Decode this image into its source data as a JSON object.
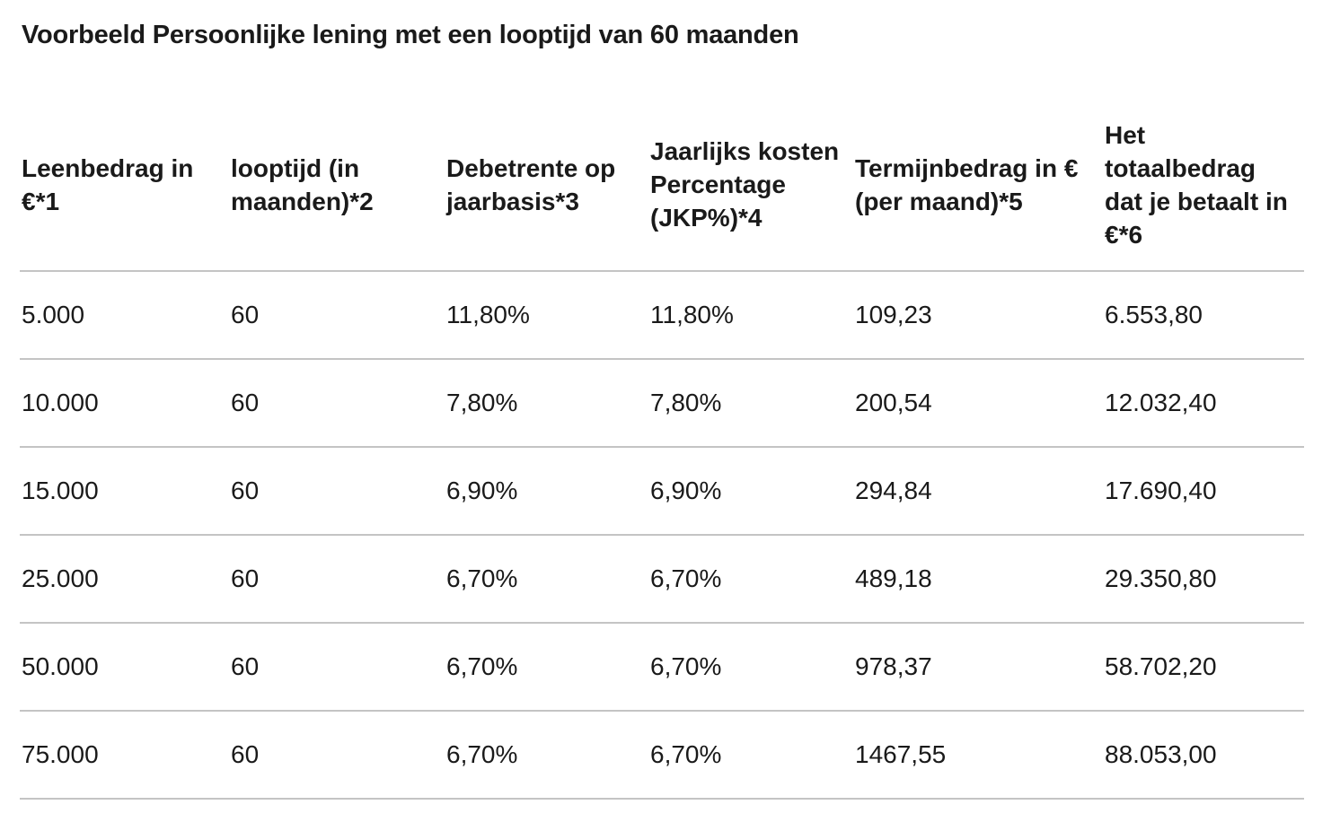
{
  "title": "Voorbeeld Persoonlijke lening met een looptijd van 60 maanden",
  "table": {
    "headers": [
      "Leenbedrag in €*1",
      "looptijd (in maanden)*2",
      "Debetrente op jaarbasis*3",
      "Jaarlijks kosten Percentage (JKP%)*4",
      "Termijnbedrag in € (per maand)*5",
      "Het totaalbedrag dat je betaalt in €*6"
    ],
    "rows": [
      [
        "5.000",
        "60",
        "11,80%",
        "11,80%",
        "109,23",
        "6.553,80"
      ],
      [
        "10.000",
        "60",
        "7,80%",
        "7,80%",
        "200,54",
        "12.032,40"
      ],
      [
        "15.000",
        "60",
        "6,90%",
        "6,90%",
        "294,84",
        "17.690,40"
      ],
      [
        "25.000",
        "60",
        "6,70%",
        "6,70%",
        "489,18",
        "29.350,80"
      ],
      [
        "50.000",
        "60",
        "6,70%",
        "6,70%",
        "978,37",
        "58.702,20"
      ],
      [
        "75.000",
        "60",
        "6,70%",
        "6,70%",
        "1467,55",
        "88.053,00"
      ]
    ]
  }
}
